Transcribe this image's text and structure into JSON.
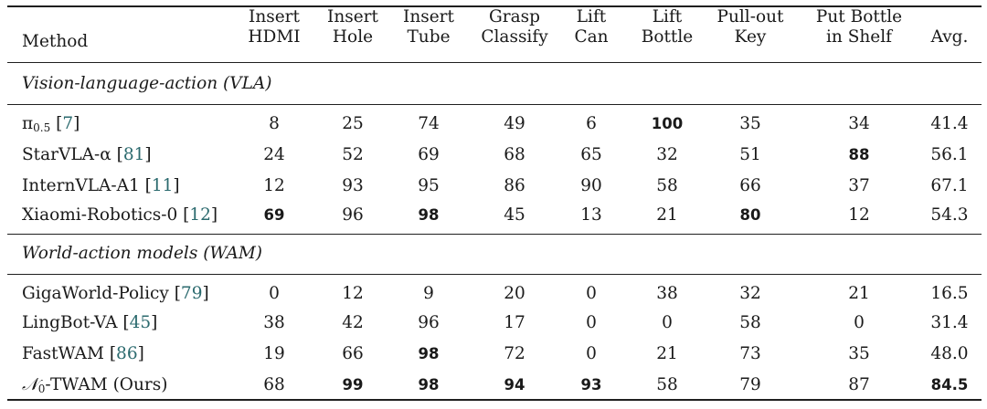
{
  "header": {
    "method": "Method",
    "columns": [
      {
        "line1": "Insert",
        "line2": "HDMI"
      },
      {
        "line1": "Insert",
        "line2": "Hole"
      },
      {
        "line1": "Insert",
        "line2": "Tube"
      },
      {
        "line1": "Grasp",
        "line2": "Classify"
      },
      {
        "line1": "Lift",
        "line2": "Can"
      },
      {
        "line1": "Lift",
        "line2": "Bottle"
      },
      {
        "line1": "Pull-out",
        "line2": "Key"
      },
      {
        "line1": "Put Bottle",
        "line2": "in Shelf"
      },
      {
        "line1": "",
        "line2": "Avg."
      }
    ]
  },
  "sections": [
    {
      "title": "Vision-language-action (VLA)",
      "rows": [
        {
          "name": "π",
          "name_sub": "0.5",
          "name_suffix": " ",
          "cite": "7",
          "values": [
            "8",
            "25",
            "74",
            "49",
            "6",
            "100",
            "35",
            "34",
            "41.4"
          ],
          "bold": [
            false,
            false,
            false,
            false,
            false,
            true,
            false,
            false,
            false
          ]
        },
        {
          "name": "StarVLA-α",
          "name_sub": "",
          "name_suffix": " ",
          "cite": "81",
          "values": [
            "24",
            "52",
            "69",
            "68",
            "65",
            "32",
            "51",
            "88",
            "56.1"
          ],
          "bold": [
            false,
            false,
            false,
            false,
            false,
            false,
            false,
            true,
            false
          ]
        },
        {
          "name": "InternVLA-A1",
          "name_sub": "",
          "name_suffix": " ",
          "cite": "11",
          "values": [
            "12",
            "93",
            "95",
            "86",
            "90",
            "58",
            "66",
            "37",
            "67.1"
          ],
          "bold": [
            false,
            false,
            false,
            false,
            false,
            false,
            false,
            false,
            false
          ]
        },
        {
          "name": "Xiaomi-Robotics-0",
          "name_sub": "",
          "name_suffix": " ",
          "cite": "12",
          "values": [
            "69",
            "96",
            "98",
            "45",
            "13",
            "21",
            "80",
            "12",
            "54.3"
          ],
          "bold": [
            true,
            false,
            true,
            false,
            false,
            false,
            true,
            false,
            false
          ]
        }
      ]
    },
    {
      "title": "World-action models (WAM)",
      "rows": [
        {
          "name": "GigaWorld-Policy",
          "name_sub": "",
          "name_suffix": " ",
          "cite": "79",
          "values": [
            "0",
            "12",
            "9",
            "20",
            "0",
            "38",
            "32",
            "21",
            "16.5"
          ],
          "bold": [
            false,
            false,
            false,
            false,
            false,
            false,
            false,
            false,
            false
          ]
        },
        {
          "name": "LingBot-VA",
          "name_sub": "",
          "name_suffix": " ",
          "cite": "45",
          "values": [
            "38",
            "42",
            "96",
            "17",
            "0",
            "0",
            "58",
            "0",
            "31.4"
          ],
          "bold": [
            false,
            false,
            false,
            false,
            false,
            false,
            false,
            false,
            false
          ]
        },
        {
          "name": "FastWAM",
          "name_sub": "",
          "name_suffix": " ",
          "cite": "86",
          "values": [
            "19",
            "66",
            "98",
            "72",
            "0",
            "21",
            "73",
            "35",
            "48.0"
          ],
          "bold": [
            false,
            false,
            true,
            false,
            false,
            false,
            false,
            false,
            false
          ]
        },
        {
          "name": "𝒩",
          "name_sub": "0",
          "name_suffix": "-TWAM (Ours)",
          "cite": "",
          "values": [
            "68",
            "99",
            "98",
            "94",
            "93",
            "58",
            "79",
            "87",
            "84.5"
          ],
          "bold": [
            false,
            true,
            true,
            true,
            true,
            false,
            false,
            false,
            true
          ]
        }
      ]
    }
  ]
}
